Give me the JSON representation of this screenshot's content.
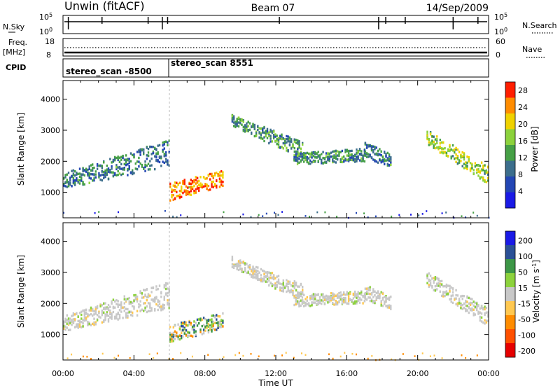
{
  "header": {
    "station": "Unwin (fitACF)",
    "beam": "Beam 07",
    "date": "14/Sep/2009"
  },
  "summary_panels": {
    "nsky": {
      "label": "N.Sky",
      "ytick_top": "10^5",
      "ytick_bottom": "10^0",
      "right_label": "N.Search",
      "right_tick_top": "10^5",
      "right_tick_bottom": "10^0"
    },
    "freq": {
      "label_line1": "Freq.",
      "label_line2": "[MHz]",
      "ytick_top": "18",
      "ytick_bottom": "8",
      "right_label": "Nave",
      "right_tick_top": "60",
      "right_tick_bottom": "0"
    },
    "cpid": {
      "label": "CPID",
      "segments": [
        {
          "name": "stereo_scan -8500",
          "start_hour": 0,
          "end_hour": 6.0
        },
        {
          "name": "stereo_scan 8551",
          "start_hour": 6.0,
          "end_hour": 24
        }
      ]
    }
  },
  "chart_data": [
    {
      "type": "heatmap",
      "title": "",
      "xlabel": "Time UT",
      "ylabel": "Slant Range [km]",
      "xlim_hours": [
        0,
        24
      ],
      "xticks": [
        "00:00",
        "04:00",
        "08:00",
        "12:00",
        "16:00",
        "20:00",
        "00:00"
      ],
      "ylim": [
        180,
        4600
      ],
      "yticks": [
        "1000",
        "2000",
        "3000",
        "4000"
      ],
      "colorbar": {
        "label": "Power [dB]",
        "ticks": [
          "4",
          "8",
          "12",
          "16",
          "20",
          "24",
          "28"
        ],
        "range": [
          0,
          30
        ],
        "colors": [
          "#1a1ae6",
          "#2346b4",
          "#3c6e8c",
          "#46a046",
          "#8cd23c",
          "#f0d200",
          "#ff8c00",
          "#ff1e00"
        ]
      },
      "echo_bands": [
        {
          "t0": 0.0,
          "t1": 6.0,
          "r0a": 1150,
          "r0b": 1400,
          "r1a": 1900,
          "r1b": 2500,
          "intensity": 0.3
        },
        {
          "t0": 6.0,
          "t1": 9.0,
          "r0a": 780,
          "r0b": 1100,
          "r1a": 1250,
          "r1b": 1500,
          "intensity": 0.85
        },
        {
          "t0": 9.5,
          "t1": 13.5,
          "r0a": 3200,
          "r0b": 3300,
          "r1a": 2100,
          "r1b": 2400,
          "intensity": 0.4
        },
        {
          "t0": 13.0,
          "t1": 17.0,
          "r0a": 1950,
          "r0b": 2050,
          "r1a": 2050,
          "r1b": 2200,
          "intensity": 0.35
        },
        {
          "t0": 17.0,
          "t1": 18.5,
          "r0a": 2200,
          "r0b": 2400,
          "r1a": 1800,
          "r1b": 2000,
          "intensity": 0.3
        },
        {
          "t0": 20.5,
          "t1": 24.0,
          "r0a": 2600,
          "r0b": 2800,
          "r1a": 1300,
          "r1b": 1600,
          "intensity": 0.55
        }
      ],
      "ground_band_km": [
        180,
        420
      ]
    },
    {
      "type": "heatmap",
      "title": "",
      "xlabel": "Time UT",
      "ylabel": "Slant Range [km]",
      "xlim_hours": [
        0,
        24
      ],
      "xticks": [
        "00:00",
        "04:00",
        "08:00",
        "12:00",
        "16:00",
        "20:00",
        "00:00"
      ],
      "ylim": [
        180,
        4600
      ],
      "yticks": [
        "1000",
        "2000",
        "3000",
        "4000"
      ],
      "colorbar": {
        "label": "Velocity [m s^-1]",
        "ticks": [
          "200",
          "100",
          "50",
          "15",
          "-15",
          "-50",
          "-100",
          "-200"
        ],
        "range": [
          -250,
          250
        ],
        "colors": [
          "#e60000",
          "#ff5000",
          "#ff8c00",
          "#ffc850",
          "#c8c8c8",
          "#8cd23c",
          "#3c9646",
          "#2a5096",
          "#1a1ae6"
        ]
      },
      "echo_bands": [
        {
          "t0": 0.0,
          "t1": 6.0,
          "r0a": 1150,
          "r0b": 1400,
          "r1a": 1900,
          "r1b": 2500,
          "vel": "grey"
        },
        {
          "t0": 6.0,
          "t1": 9.0,
          "r0a": 780,
          "r0b": 1100,
          "r1a": 1250,
          "r1b": 1500,
          "vel": "mixed"
        },
        {
          "t0": 9.5,
          "t1": 13.5,
          "r0a": 3200,
          "r0b": 3300,
          "r1a": 2100,
          "r1b": 2400,
          "vel": "grey"
        },
        {
          "t0": 13.0,
          "t1": 17.0,
          "r0a": 1950,
          "r0b": 2050,
          "r1a": 2050,
          "r1b": 2200,
          "vel": "grey"
        },
        {
          "t0": 17.0,
          "t1": 18.5,
          "r0a": 2200,
          "r0b": 2400,
          "r1a": 1800,
          "r1b": 2000,
          "vel": "grey"
        },
        {
          "t0": 20.5,
          "t1": 24.0,
          "r0a": 2600,
          "r0b": 2800,
          "r1a": 1300,
          "r1b": 1600,
          "vel": "grey"
        }
      ],
      "ground_band_km": [
        180,
        420
      ]
    }
  ]
}
